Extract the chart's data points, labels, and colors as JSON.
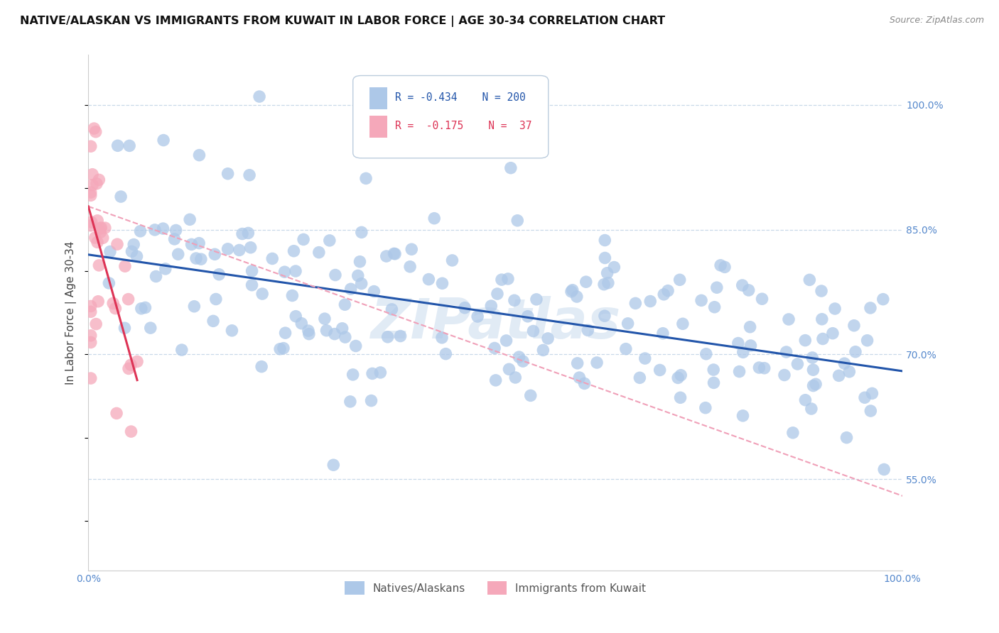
{
  "title": "NATIVE/ALASKAN VS IMMIGRANTS FROM KUWAIT IN LABOR FORCE | AGE 30-34 CORRELATION CHART",
  "source": "Source: ZipAtlas.com",
  "ylabel": "In Labor Force | Age 30-34",
  "xlim": [
    0.0,
    1.0
  ],
  "ylim": [
    0.44,
    1.06
  ],
  "yticks": [
    0.55,
    0.7,
    0.85,
    1.0
  ],
  "yticklabels_right": [
    "55.0%",
    "70.0%",
    "85.0%",
    "100.0%"
  ],
  "blue_R": -0.434,
  "blue_N": 200,
  "pink_R": -0.175,
  "pink_N": 37,
  "blue_color": "#adc8e8",
  "pink_color": "#f5a8ba",
  "blue_line_color": "#2255aa",
  "pink_line_color": "#dd3355",
  "pink_dash_color": "#f0a0b8",
  "watermark": "ZIPatlas",
  "blue_trendline_x": [
    0.0,
    1.0
  ],
  "blue_trendline_y": [
    0.82,
    0.68
  ],
  "pink_trendline_x": [
    0.0,
    1.0
  ],
  "pink_trendline_y": [
    0.878,
    0.53
  ],
  "seed": 42
}
